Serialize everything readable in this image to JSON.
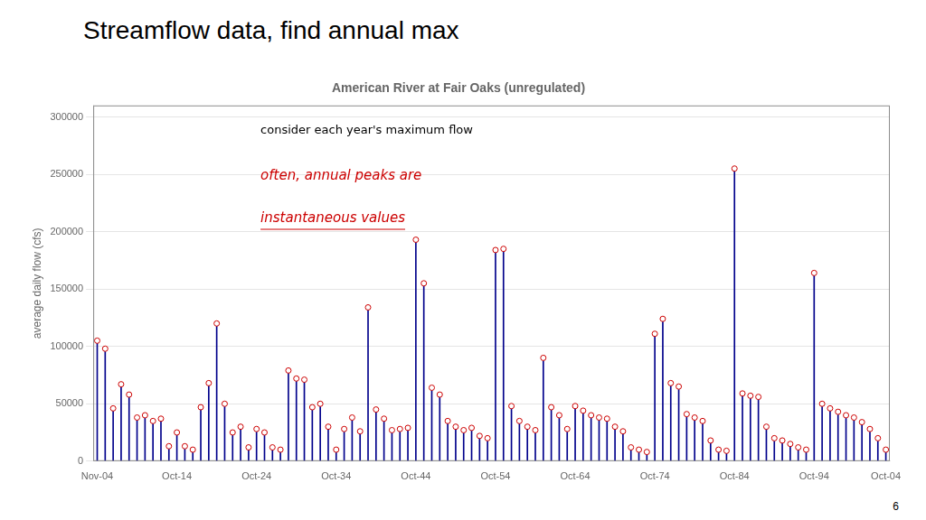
{
  "slide_title": "Streamflow data, find annual max",
  "slide_number": "6",
  "chart_data": {
    "type": "stem",
    "title": "American River at Fair Oaks (unregulated)",
    "ylabel": "average daily flow (cfs)",
    "annotations": [
      {
        "text": "consider each year's maximum flow",
        "color": "#000000"
      },
      {
        "text": "often, annual peaks are",
        "color": "#cc0000"
      },
      {
        "text": "instantaneous values",
        "color": "#cc0000"
      }
    ],
    "categories": [
      "Nov-04",
      null,
      null,
      null,
      null,
      null,
      null,
      null,
      null,
      null,
      "Oct-14",
      null,
      null,
      null,
      null,
      null,
      null,
      null,
      null,
      null,
      "Oct-24",
      null,
      null,
      null,
      null,
      null,
      null,
      null,
      null,
      null,
      "Oct-34",
      null,
      null,
      null,
      null,
      null,
      null,
      null,
      null,
      null,
      "Oct-44",
      null,
      null,
      null,
      null,
      null,
      null,
      null,
      null,
      null,
      "Oct-54",
      null,
      null,
      null,
      null,
      null,
      null,
      null,
      null,
      null,
      "Oct-64",
      null,
      null,
      null,
      null,
      null,
      null,
      null,
      null,
      null,
      "Oct-74",
      null,
      null,
      null,
      null,
      null,
      null,
      null,
      null,
      null,
      "Oct-84",
      null,
      null,
      null,
      null,
      null,
      null,
      null,
      null,
      null,
      "Oct-94",
      null,
      null,
      null,
      null,
      null,
      null,
      null,
      null,
      "Oct-04"
    ],
    "series": [
      {
        "type": "bar",
        "color": "#00008B",
        "values": [
          105000,
          98000,
          46000,
          67000,
          58000,
          38000,
          40000,
          35000,
          37000,
          13000,
          25000,
          13000,
          10000,
          47000,
          68000,
          120000,
          50000,
          25000,
          30000,
          12000,
          28000,
          25000,
          12000,
          10000,
          79000,
          72000,
          71000,
          47000,
          50000,
          30000,
          10000,
          28000,
          38000,
          26000,
          134000,
          45000,
          37000,
          27000,
          28000,
          29000,
          193000,
          155000,
          64000,
          58000,
          35000,
          30000,
          27000,
          29000,
          22000,
          20000,
          184000,
          185000,
          48000,
          35000,
          30000,
          27000,
          90000,
          47000,
          40000,
          28000,
          48000,
          44000,
          40000,
          38000,
          37000,
          30000,
          26000,
          12000,
          10000,
          8000,
          111000,
          124000,
          68000,
          65000,
          41000,
          38000,
          35000,
          18000,
          10000,
          9000,
          255000,
          59000,
          57000,
          56000,
          30000,
          20000,
          18000,
          15000,
          12000,
          10000,
          164000,
          50000,
          46000,
          43000,
          40000,
          38000,
          34000,
          28000,
          20000,
          10000
        ]
      },
      {
        "type": "scatter",
        "marker": "o",
        "color": "#cc0000",
        "values": [
          105000,
          98000,
          46000,
          67000,
          58000,
          38000,
          40000,
          35000,
          37000,
          13000,
          25000,
          13000,
          10000,
          47000,
          68000,
          120000,
          50000,
          25000,
          30000,
          12000,
          28000,
          25000,
          12000,
          10000,
          79000,
          72000,
          71000,
          47000,
          50000,
          30000,
          10000,
          28000,
          38000,
          26000,
          134000,
          45000,
          37000,
          27000,
          28000,
          29000,
          193000,
          155000,
          64000,
          58000,
          35000,
          30000,
          27000,
          29000,
          22000,
          20000,
          184000,
          185000,
          48000,
          35000,
          30000,
          27000,
          90000,
          47000,
          40000,
          28000,
          48000,
          44000,
          40000,
          38000,
          37000,
          30000,
          26000,
          12000,
          10000,
          8000,
          111000,
          124000,
          68000,
          65000,
          41000,
          38000,
          35000,
          18000,
          10000,
          9000,
          255000,
          59000,
          57000,
          56000,
          30000,
          20000,
          18000,
          15000,
          12000,
          10000,
          164000,
          50000,
          46000,
          43000,
          40000,
          38000,
          34000,
          28000,
          20000,
          10000
        ]
      }
    ],
    "ylim": [
      0,
      310000
    ],
    "yticks": [
      0,
      50000,
      100000,
      150000,
      200000,
      250000,
      300000
    ],
    "grid": true
  }
}
